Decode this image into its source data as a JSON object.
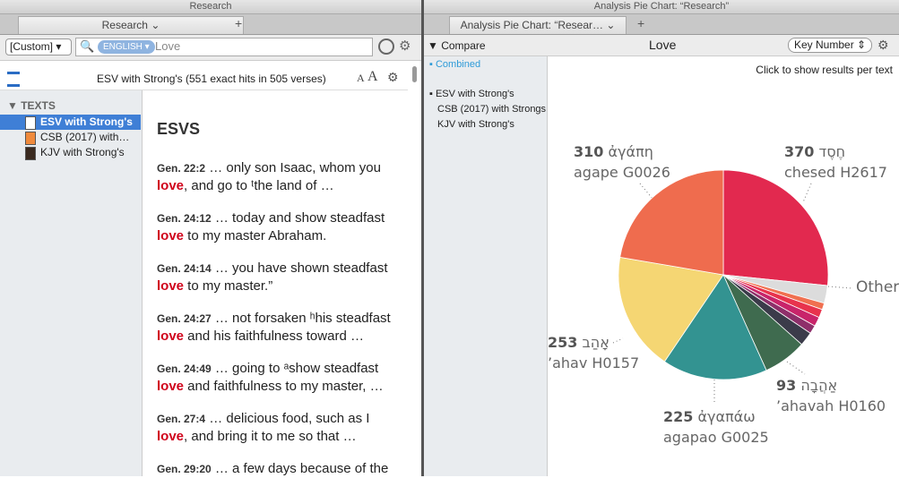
{
  "left_pane": {
    "window_title": "Research",
    "tab": "Research",
    "layout_menu": "[Custom]",
    "search_language": "ENGLISH",
    "search_query": "Love",
    "result_summary": "ESV with Strong's (551 exact hits in 505 verses)",
    "font_buttons": [
      "A",
      "A"
    ],
    "sidebar": {
      "heading": "TEXTS",
      "items": [
        "ESV with Strong's",
        "CSB (2017) with…",
        "KJV with Strong's"
      ]
    },
    "results": {
      "heading": "ESVS",
      "items": [
        {
          "ref": "Gen. 22:2",
          "before": "… only son Isaac, whom you",
          "hit": "love",
          "after": ", and go to ᵗthe land of …"
        },
        {
          "ref": "Gen. 24:12",
          "before": "… today and show steadfast",
          "hit": "love",
          "after": " to my master Abraham."
        },
        {
          "ref": "Gen. 24:14",
          "before": "… you have shown steadfast",
          "hit": "love",
          "after": " to my master.”"
        },
        {
          "ref": "Gen. 24:27",
          "before": "… not forsaken ʰhis steadfast",
          "hit": "love",
          "after": " and his faithfulness toward …"
        },
        {
          "ref": "Gen. 24:49",
          "before": "… going to ᵃshow steadfast",
          "hit": "love",
          "after": " and faithfulness to my master, …"
        },
        {
          "ref": "Gen. 27:4",
          "before": "… delicious food, such as I",
          "hit": "love",
          "after": ", and bring it to me so that …"
        },
        {
          "ref": "Gen. 29:20",
          "before": "… a few days because of the"
        }
      ]
    }
  },
  "right_pane": {
    "window_title": "Analysis Pie Chart: “Research”",
    "tab": "Analysis Pie Chart: “Resear…",
    "compare": "Compare",
    "query": "Love",
    "sort_button": "Key Number",
    "sidebar": {
      "combined": "Combined",
      "items": [
        "ESV with Strong's",
        "CSB (2017) with Strongs",
        "KJV with Strong's"
      ]
    },
    "hint": "Click to show results per text",
    "pie": {
      "slices": [
        {
          "value": 370,
          "color": "#e2294f",
          "word": "חֶסֶד",
          "gloss": "chesed H2617"
        },
        {
          "value": 38,
          "color": "#dcdcdc",
          "label": "Other"
        },
        {
          "value": 14,
          "color": "#f07050"
        },
        {
          "value": 18,
          "color": "#e8334d"
        },
        {
          "value": 20,
          "color": "#c8246a"
        },
        {
          "value": 18,
          "color": "#8e2f6a"
        },
        {
          "value": 30,
          "color": "#3b3b4a"
        },
        {
          "value": 93,
          "color": "#3f6b4f",
          "word": "אַהֲבָה",
          "gloss": "’ahavah H0160"
        },
        {
          "value": 225,
          "color": "#339391",
          "word": "ἀγαπάω",
          "gloss": "agapao G0025"
        },
        {
          "value": 253,
          "color": "#f5d673",
          "word": "אָהַב",
          "gloss": "’ahav H0157"
        },
        {
          "value": 310,
          "color": "#ef6c4e",
          "word": "ἀγάπη",
          "gloss": "agape G0026"
        }
      ]
    }
  }
}
